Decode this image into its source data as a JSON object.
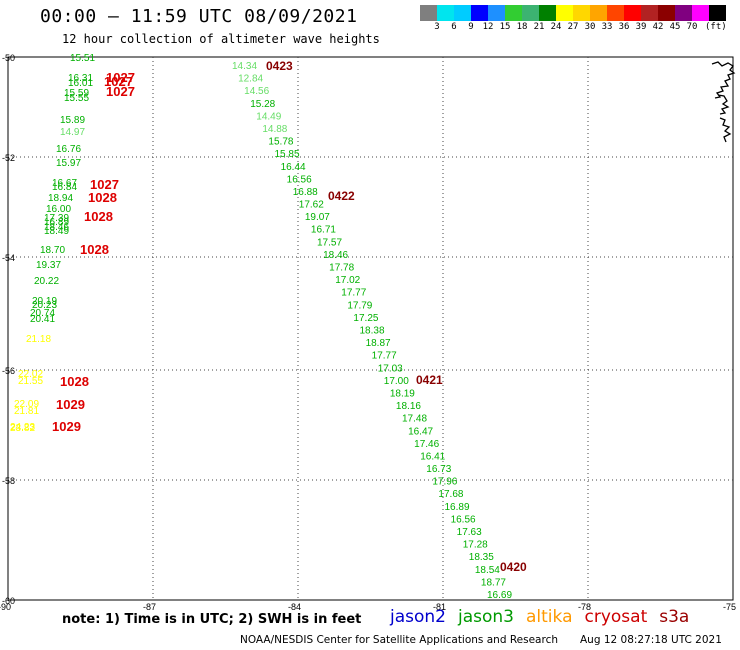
{
  "header": {
    "title": "00:00 – 11:59 UTC 08/09/2021",
    "subtitle": "12 hour collection of altimeter wave heights"
  },
  "colorbar": {
    "colors": [
      "#7f7f7f",
      "#00e5ee",
      "#00ccff",
      "#0000ff",
      "#1e90ff",
      "#32cd32",
      "#3cb371",
      "#008000",
      "#ffff00",
      "#ffd700",
      "#ffa500",
      "#ff4500",
      "#ff0000",
      "#b22222",
      "#8b0000",
      "#800080",
      "#ff00ff",
      "#000000"
    ],
    "ticks": [
      "3",
      "6",
      "9",
      "12",
      "15",
      "18",
      "21",
      "24",
      "27",
      "30",
      "33",
      "36",
      "39",
      "42",
      "45",
      "70"
    ],
    "unit": "(ft)"
  },
  "map": {
    "lat_labels": [
      "-50",
      "-52",
      "-54",
      "-56",
      "-58",
      "-60"
    ],
    "lon_labels": [
      "-90",
      "-87",
      "-84",
      "-81",
      "-78",
      "-75"
    ],
    "colors": {
      "light_green": "#66dd66",
      "green": "#00b000",
      "yellow": "#ffff00",
      "red": "#dd0000",
      "dark_red": "#880000"
    }
  },
  "track_east": [
    {
      "v": "14.34",
      "c": "light_green"
    },
    {
      "v": "12.84",
      "c": "light_green"
    },
    {
      "v": "14.56",
      "c": "light_green"
    },
    {
      "v": "15.28",
      "c": "green"
    },
    {
      "v": "14.49",
      "c": "light_green"
    },
    {
      "v": "14.88",
      "c": "light_green"
    },
    {
      "v": "15.78",
      "c": "green"
    },
    {
      "v": "15.85",
      "c": "green"
    },
    {
      "v": "16.44",
      "c": "green"
    },
    {
      "v": "16.56",
      "c": "green"
    },
    {
      "v": "16.88",
      "c": "green"
    },
    {
      "v": "17.62",
      "c": "green"
    },
    {
      "v": "19.07",
      "c": "green"
    },
    {
      "v": "16.71",
      "c": "green"
    },
    {
      "v": "17.57",
      "c": "green"
    },
    {
      "v": "18.46",
      "c": "green"
    },
    {
      "v": "17.78",
      "c": "green"
    },
    {
      "v": "17.02",
      "c": "green"
    },
    {
      "v": "17.77",
      "c": "green"
    },
    {
      "v": "17.79",
      "c": "green"
    },
    {
      "v": "17.25",
      "c": "green"
    },
    {
      "v": "18.38",
      "c": "green"
    },
    {
      "v": "18.87",
      "c": "green"
    },
    {
      "v": "17.77",
      "c": "green"
    },
    {
      "v": "17.03",
      "c": "green"
    },
    {
      "v": "17.00",
      "c": "green"
    },
    {
      "v": "18.19",
      "c": "green"
    },
    {
      "v": "18.16",
      "c": "green"
    },
    {
      "v": "17.48",
      "c": "green"
    },
    {
      "v": "16.47",
      "c": "green"
    },
    {
      "v": "17.46",
      "c": "green"
    },
    {
      "v": "16.41",
      "c": "green"
    },
    {
      "v": "16.73",
      "c": "green"
    },
    {
      "v": "17.96",
      "c": "green"
    },
    {
      "v": "17.68",
      "c": "green"
    },
    {
      "v": "16.89",
      "c": "green"
    },
    {
      "v": "16.56",
      "c": "green"
    },
    {
      "v": "17.63",
      "c": "green"
    },
    {
      "v": "17.28",
      "c": "green"
    },
    {
      "v": "18.35",
      "c": "green"
    },
    {
      "v": "18.54",
      "c": "green"
    },
    {
      "v": "18.77",
      "c": "green"
    },
    {
      "v": "16.69",
      "c": "green"
    }
  ],
  "track_east_times": [
    "0423",
    "0422",
    "0421",
    "0420"
  ],
  "track_west": [
    {
      "v": "15.51",
      "c": "green"
    },
    {
      "v": "16.31",
      "c": "green"
    },
    {
      "v": "16.01",
      "c": "green"
    },
    {
      "v": "15.59",
      "c": "green"
    },
    {
      "v": "15.55",
      "c": "green"
    },
    {
      "v": "15.89",
      "c": "green"
    },
    {
      "v": "14.97",
      "c": "light_green"
    },
    {
      "v": "16.76",
      "c": "green"
    },
    {
      "v": "15.97",
      "c": "green"
    },
    {
      "v": "16.67",
      "c": "green"
    },
    {
      "v": "16.84",
      "c": "green"
    },
    {
      "v": "18.94",
      "c": "green"
    },
    {
      "v": "16.00",
      "c": "green"
    },
    {
      "v": "17.39",
      "c": "green"
    },
    {
      "v": "16.89",
      "c": "green"
    },
    {
      "v": "18.46",
      "c": "green"
    },
    {
      "v": "18.49",
      "c": "green"
    },
    {
      "v": "18.70",
      "c": "green"
    },
    {
      "v": "19.37",
      "c": "green"
    },
    {
      "v": "20.22",
      "c": "green"
    },
    {
      "v": "20.19",
      "c": "green"
    },
    {
      "v": "20.23",
      "c": "green"
    },
    {
      "v": "20.74",
      "c": "green"
    },
    {
      "v": "20.41",
      "c": "green"
    },
    {
      "v": "21.18",
      "c": "yellow"
    },
    {
      "v": "22.02",
      "c": "yellow"
    },
    {
      "v": "21.55",
      "c": "yellow"
    },
    {
      "v": "22.09",
      "c": "yellow"
    },
    {
      "v": "21.81",
      "c": "yellow"
    },
    {
      "v": "24.23",
      "c": "yellow"
    },
    {
      "v": "23.82",
      "c": "yellow"
    }
  ],
  "track_west_times": [
    "1027",
    "1027",
    "1027",
    "1027",
    "1028",
    "1028",
    "1028",
    "1028",
    "1029",
    "1029"
  ],
  "footer": {
    "note": "note: 1) Time is in UTC; 2) SWH is in feet",
    "satellites": [
      {
        "name": "jason2",
        "color": "#0000cc"
      },
      {
        "name": "jason3",
        "color": "#009900"
      },
      {
        "name": "altika",
        "color": "#ff9900"
      },
      {
        "name": "cryosat",
        "color": "#cc0000"
      },
      {
        "name": "s3a",
        "color": "#990000"
      }
    ],
    "credit": "NOAA/NESDIS Center for Satellite Applications and Research",
    "timestamp": "Aug 12 08:27:18 UTC 2021"
  }
}
